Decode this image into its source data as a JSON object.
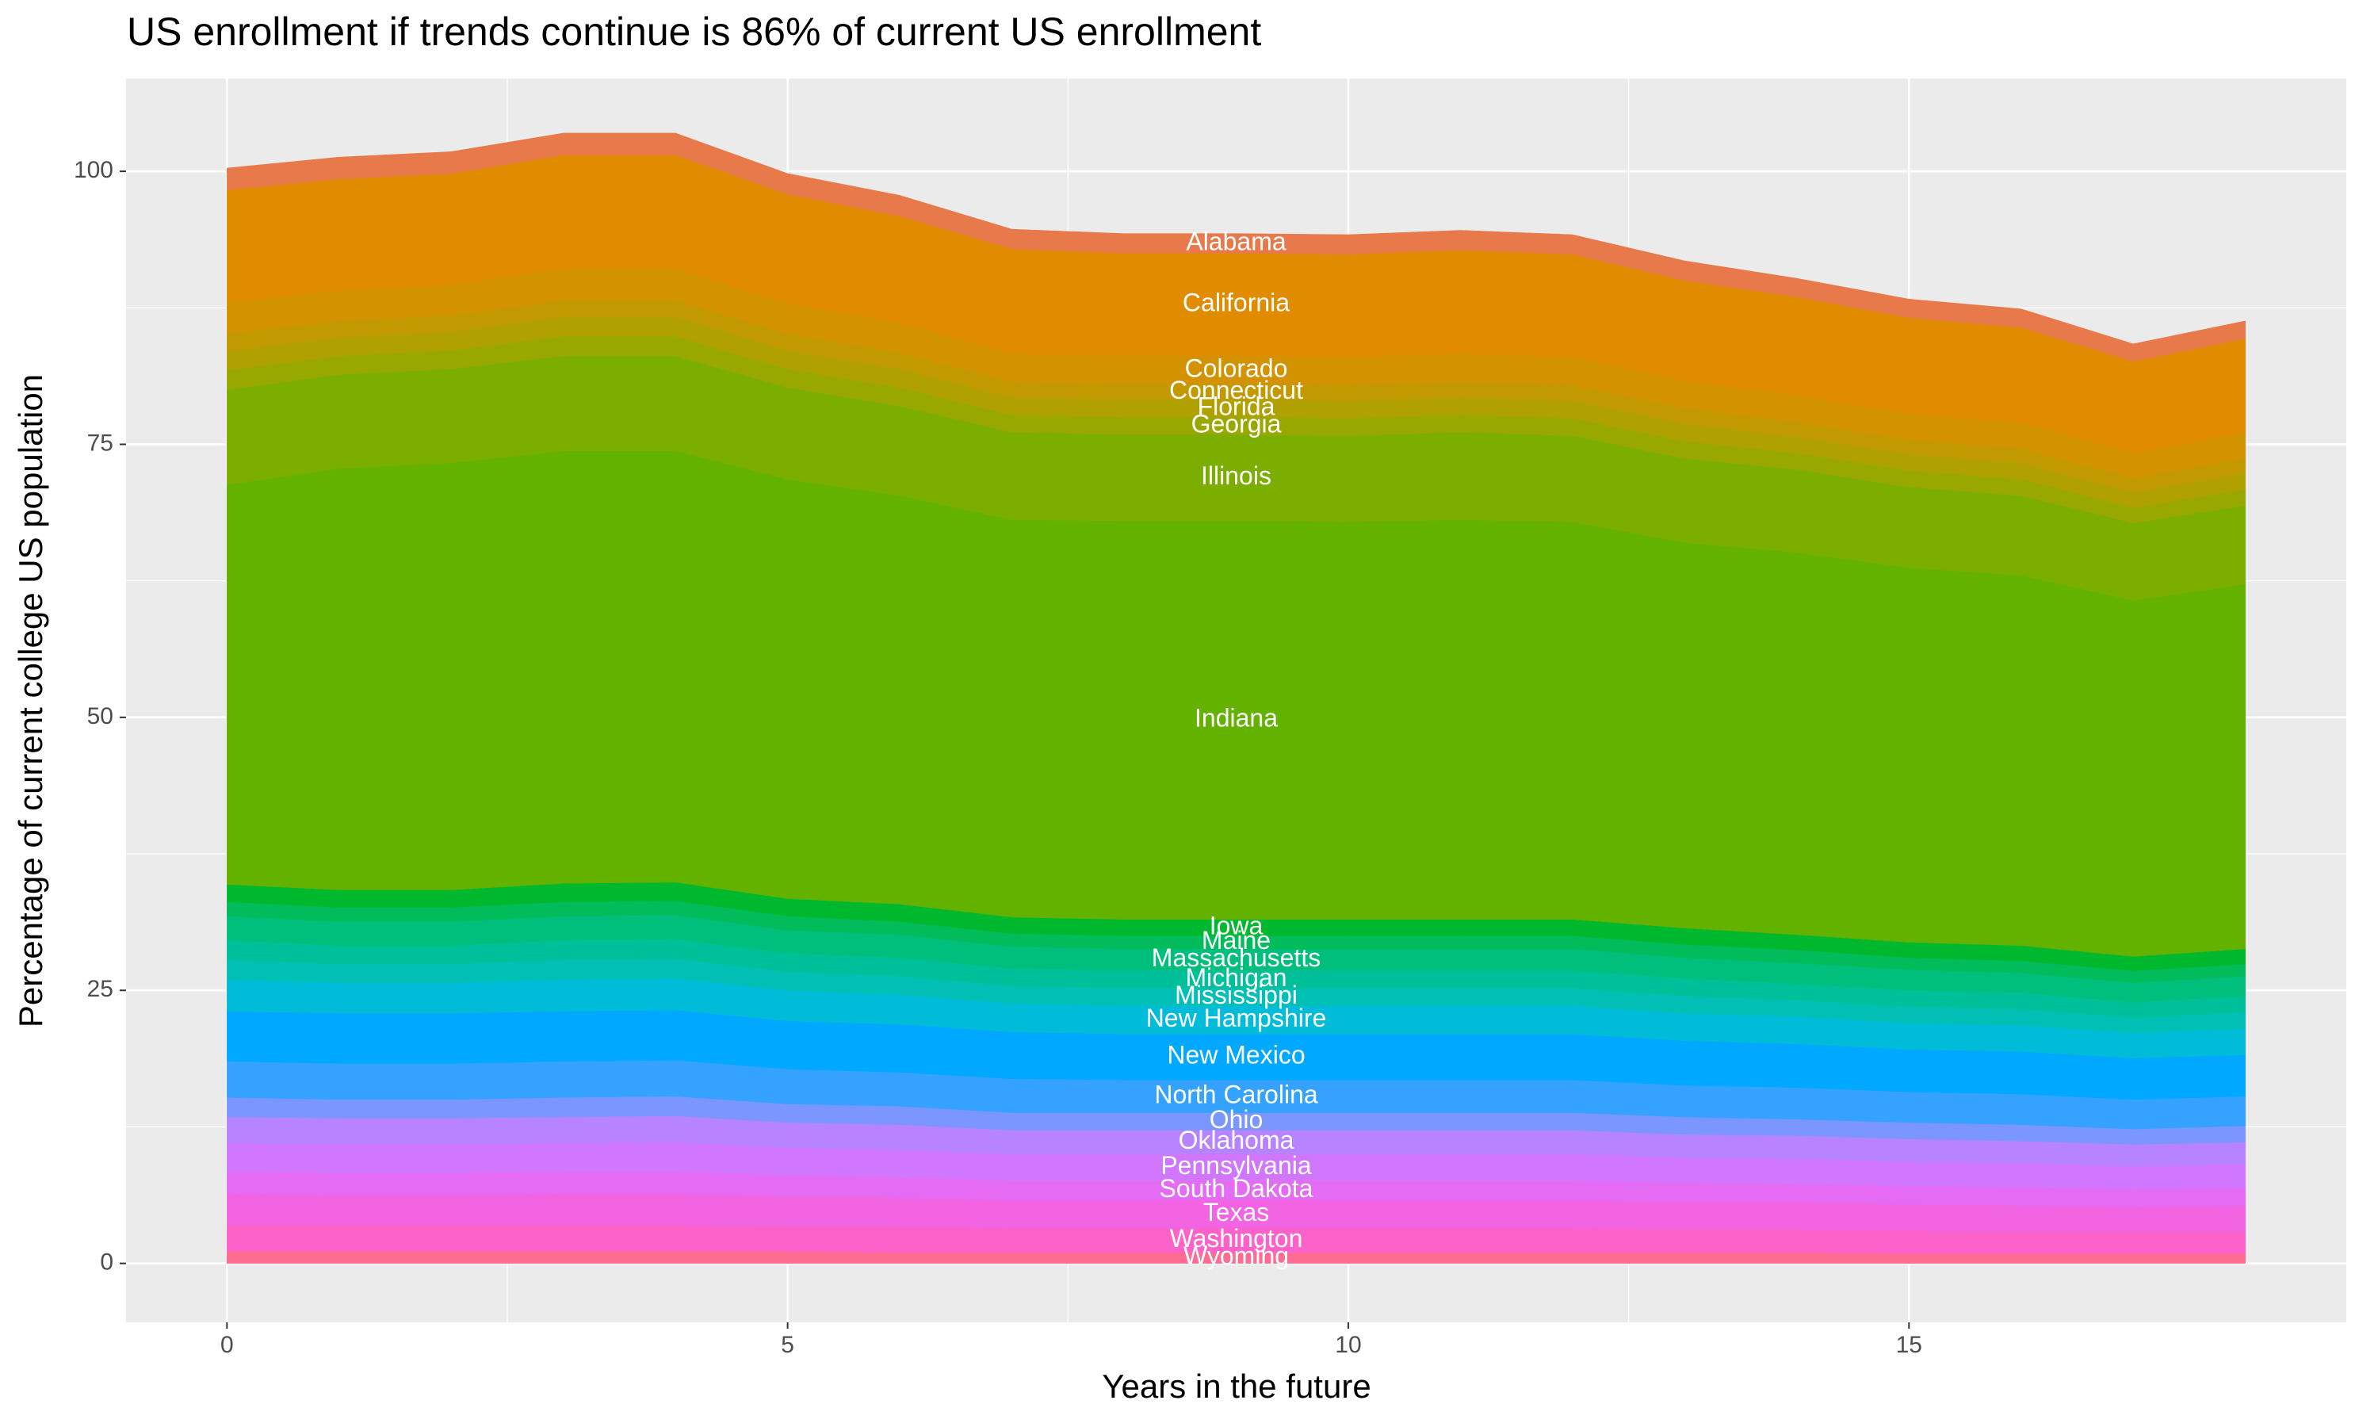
{
  "chart_data": {
    "type": "stacked_area",
    "title": "US enrollment if trends continue is 86% of current US enrollment",
    "x_label": "Years in the future",
    "y_label": "Percentage of current college US population",
    "x": [
      0,
      1,
      2,
      3,
      4,
      5,
      6,
      7,
      8,
      9,
      10,
      11,
      12,
      13,
      14,
      15,
      16,
      17,
      18
    ],
    "xlim": [
      -0.9,
      18.9
    ],
    "xticks": [
      0,
      5,
      10,
      15
    ],
    "ylim": [
      -5.4,
      108.5
    ],
    "yticks": [
      0,
      25,
      50,
      75,
      100
    ],
    "grid": true,
    "background": "#ebebeb",
    "series": [
      {
        "name": "Alabama",
        "color": "#e8794a",
        "values": [
          2.0,
          2.0,
          2.0,
          2.0,
          2.0,
          1.9,
          1.9,
          1.8,
          1.8,
          1.8,
          1.8,
          1.8,
          1.8,
          1.8,
          1.7,
          1.7,
          1.7,
          1.6,
          1.6
        ]
      },
      {
        "name": "California",
        "color": "#e08b00",
        "values": [
          10.3,
          10.2,
          10.2,
          10.4,
          10.4,
          10.0,
          9.8,
          9.6,
          9.4,
          9.4,
          9.4,
          9.5,
          9.4,
          9.2,
          9.0,
          8.8,
          8.7,
          8.4,
          8.6
        ]
      },
      {
        "name": "Colorado",
        "color": "#d39200",
        "values": [
          2.9,
          2.8,
          2.8,
          2.9,
          2.9,
          2.8,
          2.7,
          2.6,
          2.6,
          2.6,
          2.6,
          2.6,
          2.6,
          2.5,
          2.5,
          2.4,
          2.4,
          2.3,
          2.4
        ]
      },
      {
        "name": "Connecticut",
        "color": "#c29a00",
        "values": [
          1.5,
          1.5,
          1.5,
          1.5,
          1.5,
          1.5,
          1.5,
          1.4,
          1.4,
          1.4,
          1.4,
          1.4,
          1.4,
          1.4,
          1.3,
          1.3,
          1.3,
          1.3,
          1.3
        ]
      },
      {
        "name": "Florida",
        "color": "#b0a100",
        "values": [
          1.8,
          1.7,
          1.7,
          1.8,
          1.8,
          1.7,
          1.7,
          1.6,
          1.6,
          1.6,
          1.6,
          1.6,
          1.6,
          1.6,
          1.5,
          1.5,
          1.5,
          1.4,
          1.5
        ]
      },
      {
        "name": "Georgia",
        "color": "#99a800",
        "values": [
          1.8,
          1.7,
          1.7,
          1.8,
          1.8,
          1.7,
          1.7,
          1.6,
          1.6,
          1.6,
          1.6,
          1.6,
          1.6,
          1.6,
          1.5,
          1.5,
          1.5,
          1.4,
          1.5
        ]
      },
      {
        "name": "Illinois",
        "color": "#7cae00",
        "values": [
          8.7,
          8.6,
          8.6,
          8.7,
          8.7,
          8.4,
          8.2,
          8.0,
          7.9,
          7.9,
          7.9,
          8.0,
          7.9,
          7.7,
          7.6,
          7.4,
          7.3,
          7.1,
          7.2
        ]
      },
      {
        "name": "Indiana",
        "color": "#64b200",
        "values": [
          36.6,
          38.6,
          39.1,
          39.6,
          39.5,
          38.4,
          37.4,
          36.4,
          36.5,
          36.5,
          36.4,
          36.6,
          36.4,
          35.3,
          35.0,
          34.3,
          33.9,
          32.6,
          33.4
        ]
      },
      {
        "name": "Iowa",
        "color": "#00b82e",
        "values": [
          1.6,
          1.6,
          1.6,
          1.7,
          1.7,
          1.6,
          1.6,
          1.5,
          1.5,
          1.5,
          1.5,
          1.5,
          1.5,
          1.5,
          1.4,
          1.4,
          1.4,
          1.3,
          1.4
        ]
      },
      {
        "name": "Maine",
        "color": "#00bc5a",
        "values": [
          1.3,
          1.3,
          1.3,
          1.3,
          1.3,
          1.3,
          1.2,
          1.2,
          1.2,
          1.2,
          1.2,
          1.2,
          1.2,
          1.2,
          1.2,
          1.1,
          1.1,
          1.1,
          1.1
        ]
      },
      {
        "name": "Massachusetts",
        "color": "#00bf7d",
        "values": [
          2.2,
          2.2,
          2.2,
          2.2,
          2.2,
          2.1,
          2.1,
          2.0,
          2.0,
          2.0,
          2.0,
          2.0,
          2.0,
          1.9,
          1.9,
          1.9,
          1.8,
          1.8,
          1.8
        ]
      },
      {
        "name": "Michigan",
        "color": "#00c09a",
        "values": [
          1.8,
          1.7,
          1.7,
          1.8,
          1.8,
          1.7,
          1.7,
          1.6,
          1.6,
          1.6,
          1.6,
          1.6,
          1.6,
          1.6,
          1.5,
          1.5,
          1.5,
          1.4,
          1.5
        ]
      },
      {
        "name": "Mississippi",
        "color": "#00c0b5",
        "values": [
          1.8,
          1.7,
          1.7,
          1.8,
          1.8,
          1.7,
          1.7,
          1.6,
          1.6,
          1.6,
          1.6,
          1.6,
          1.6,
          1.6,
          1.5,
          1.5,
          1.5,
          1.4,
          1.5
        ]
      },
      {
        "name": "New Hampshire",
        "color": "#00bcd8",
        "values": [
          2.9,
          2.8,
          2.8,
          2.9,
          2.9,
          2.8,
          2.7,
          2.6,
          2.6,
          2.6,
          2.6,
          2.6,
          2.6,
          2.5,
          2.5,
          2.4,
          2.4,
          2.3,
          2.4
        ]
      },
      {
        "name": "New Mexico",
        "color": "#00a9ff",
        "values": [
          4.6,
          4.6,
          4.6,
          4.6,
          4.6,
          4.4,
          4.4,
          4.3,
          4.2,
          4.2,
          4.2,
          4.2,
          4.2,
          4.1,
          4.0,
          3.9,
          3.9,
          3.8,
          3.8
        ]
      },
      {
        "name": "North Carolina",
        "color": "#35a2ff",
        "values": [
          3.3,
          3.3,
          3.3,
          3.3,
          3.3,
          3.2,
          3.1,
          3.1,
          3.0,
          3.0,
          3.0,
          3.0,
          3.0,
          2.9,
          2.9,
          2.8,
          2.8,
          2.7,
          2.7
        ]
      },
      {
        "name": "Ohio",
        "color": "#7b96ff",
        "values": [
          1.8,
          1.7,
          1.7,
          1.8,
          1.8,
          1.7,
          1.7,
          1.6,
          1.6,
          1.6,
          1.6,
          1.6,
          1.6,
          1.6,
          1.5,
          1.5,
          1.5,
          1.4,
          1.5
        ]
      },
      {
        "name": "Oklahoma",
        "color": "#b883ff",
        "values": [
          2.4,
          2.4,
          2.4,
          2.4,
          2.4,
          2.3,
          2.3,
          2.2,
          2.2,
          2.2,
          2.2,
          2.2,
          2.2,
          2.1,
          2.1,
          2.1,
          2.0,
          2.0,
          2.0
        ]
      },
      {
        "name": "Pennsylvania",
        "color": "#d177ff",
        "values": [
          2.6,
          2.6,
          2.6,
          2.6,
          2.7,
          2.5,
          2.5,
          2.4,
          2.4,
          2.4,
          2.4,
          2.4,
          2.4,
          2.3,
          2.3,
          2.2,
          2.2,
          2.1,
          2.2
        ]
      },
      {
        "name": "South Dakota",
        "color": "#e46cf4",
        "values": [
          2.0,
          2.0,
          2.0,
          2.0,
          2.0,
          1.9,
          1.9,
          1.8,
          1.8,
          1.8,
          1.8,
          1.8,
          1.8,
          1.8,
          1.7,
          1.7,
          1.7,
          1.6,
          1.6
        ]
      },
      {
        "name": "Texas",
        "color": "#f264e2",
        "values": [
          2.9,
          2.8,
          2.8,
          2.9,
          2.9,
          2.8,
          2.7,
          2.6,
          2.6,
          2.6,
          2.6,
          2.6,
          2.6,
          2.5,
          2.5,
          2.4,
          2.4,
          2.3,
          2.4
        ]
      },
      {
        "name": "Washington",
        "color": "#fc62c9",
        "values": [
          2.4,
          2.4,
          2.4,
          2.4,
          2.4,
          2.3,
          2.3,
          2.2,
          2.2,
          2.2,
          2.2,
          2.2,
          2.2,
          2.1,
          2.1,
          2.1,
          2.0,
          2.0,
          2.0
        ]
      },
      {
        "name": "Wyoming",
        "color": "#ff6c91",
        "values": [
          1.1,
          1.1,
          1.1,
          1.1,
          1.1,
          1.1,
          1.0,
          1.0,
          1.0,
          1.0,
          1.0,
          1.0,
          1.0,
          1.0,
          1.0,
          0.9,
          0.9,
          0.9,
          0.9
        ]
      }
    ]
  }
}
